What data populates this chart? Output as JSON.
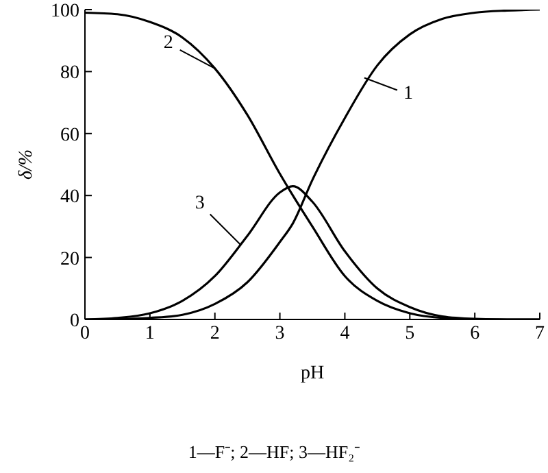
{
  "chart_data": {
    "type": "line",
    "xlabel": "pH",
    "ylabel": "δ/%",
    "x": [
      0,
      0.5,
      1,
      1.5,
      2,
      2.5,
      3,
      3.2,
      3.5,
      4,
      4.5,
      5,
      5.5,
      6,
      6.5,
      7
    ],
    "series": [
      {
        "color": "#000000",
        "values": [
          0,
          0.1,
          0.5,
          1.5,
          5,
          12,
          25,
          31,
          45,
          65,
          82,
          92,
          97,
          99,
          99.7,
          100
        ]
      },
      {
        "color": "#000000",
        "values": [
          99,
          98.5,
          96,
          91,
          81,
          66,
          47,
          40,
          30,
          14,
          6,
          2,
          0.5,
          0.1,
          0,
          0
        ]
      },
      {
        "color": "#000000",
        "values": [
          0,
          0.5,
          2,
          6,
          14,
          27,
          41,
          43,
          38,
          22,
          10,
          4,
          1,
          0.2,
          0,
          0
        ]
      }
    ],
    "xlim": [
      0,
      7
    ],
    "xticks": [
      0,
      1,
      2,
      3,
      4,
      5,
      6,
      7
    ],
    "ylim": [
      0,
      100
    ],
    "yticks": [
      0,
      20,
      40,
      60,
      80,
      100
    ],
    "marker": "none",
    "line_style": "solid",
    "annotations": [
      {
        "text": "1",
        "x": 4.3,
        "y": 78
      },
      {
        "text": "2",
        "x": 2,
        "y": 81
      },
      {
        "text": "3",
        "x": 2.4,
        "y": 24
      },
      "1—F⁻; 2—HF; 3—HF₂⁻"
    ]
  }
}
